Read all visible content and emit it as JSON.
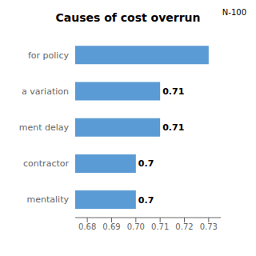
{
  "chart_data": {
    "type": "bar",
    "title": "Causes of cost overrun",
    "annotation": "N-100",
    "orientation": "horizontal",
    "categories": [
      "  mentality",
      "  contractor",
      "ment delay",
      "a variation",
      "for policy"
    ],
    "values": [
      0.7,
      0.7,
      0.71,
      0.71,
      0.73
    ],
    "value_labels": [
      "0.7",
      "0.7",
      "0.71",
      "0.71",
      null
    ],
    "data_labels": true,
    "color": "#5B9BD5",
    "xlim": [
      0.675,
      0.735
    ],
    "xticks": [
      0.68,
      0.69,
      {
        "value": 0.7,
        "label": "0.70"
      },
      0.71,
      0.72,
      0.73
    ],
    "grid": false
  }
}
